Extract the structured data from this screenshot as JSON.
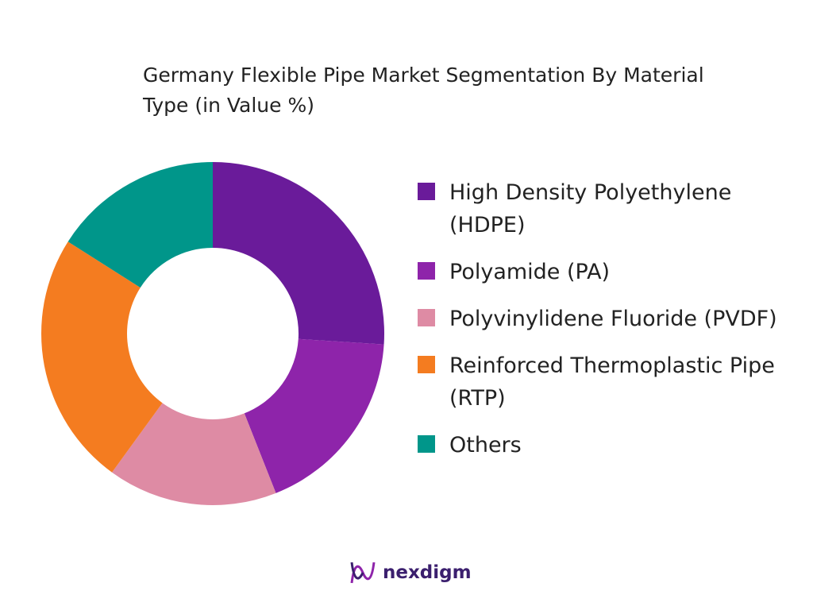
{
  "chart_data": {
    "type": "pie",
    "title": "Germany Flexible Pipe Market Segmentation By Material Type (in Value %)",
    "categories": [
      "High Density Polyethylene (HDPE)",
      "Polyamide (PA)",
      "Polyvinylidene Fluoride (PVDF)",
      "Reinforced Thermoplastic Pipe (RTP)",
      "Others"
    ],
    "values": [
      26,
      18,
      16,
      24,
      16
    ],
    "colors": [
      "#6a1b9a",
      "#8e24aa",
      "#de8ba4",
      "#f47c20",
      "#00968a"
    ],
    "legend": "right"
  },
  "logo": "nexdigm"
}
